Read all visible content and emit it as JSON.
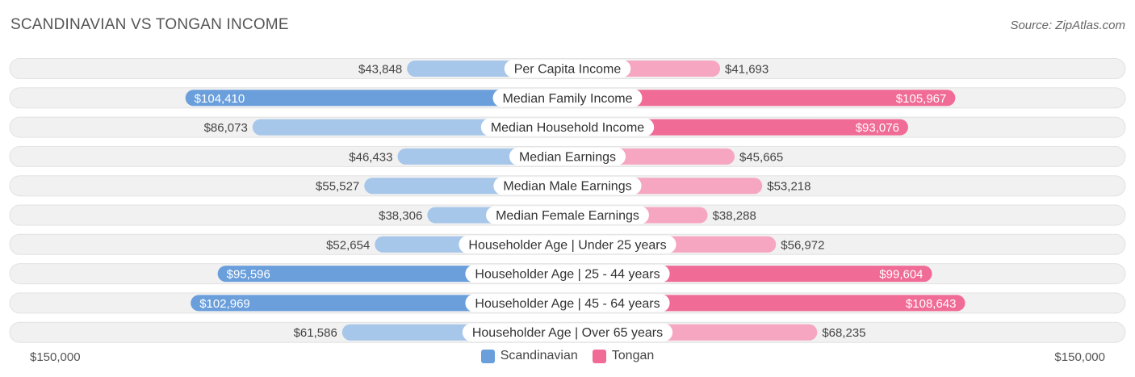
{
  "header": {
    "title": "SCANDINAVIAN VS TONGAN INCOME",
    "source": "Source: ZipAtlas.com"
  },
  "colors": {
    "left_dark": "#6a9fdc",
    "left_light": "#a6c6ea",
    "right_dark": "#f06b96",
    "right_light": "#f6a6c0",
    "row_bg": "#f1f1f1",
    "row_border": "#e2e2e2"
  },
  "chart_data": {
    "type": "bar",
    "orientation": "horizontal-diverging",
    "title": "SCANDINAVIAN VS TONGAN INCOME",
    "categories": [
      "Per Capita Income",
      "Median Family Income",
      "Median Household Income",
      "Median Earnings",
      "Median Male Earnings",
      "Median Female Earnings",
      "Householder Age | Under 25 years",
      "Householder Age | 25 - 44 years",
      "Householder Age | 45 - 64 years",
      "Householder Age | Over 65 years"
    ],
    "series": [
      {
        "name": "Scandinavian",
        "side": "left",
        "values": [
          43848,
          104410,
          86073,
          46433,
          55527,
          38306,
          52654,
          95596,
          102969,
          61586
        ],
        "labels": [
          "$43,848",
          "$104,410",
          "$86,073",
          "$46,433",
          "$55,527",
          "$38,306",
          "$52,654",
          "$95,596",
          "$102,969",
          "$61,586"
        ]
      },
      {
        "name": "Tongan",
        "side": "right",
        "values": [
          41693,
          105967,
          93076,
          45665,
          53218,
          38288,
          56972,
          99604,
          108643,
          68235
        ],
        "labels": [
          "$41,693",
          "$105,967",
          "$93,076",
          "$45,665",
          "$53,218",
          "$38,288",
          "$56,972",
          "$99,604",
          "$108,643",
          "$68,235"
        ]
      }
    ],
    "axis_max": 150000,
    "axis_labels": {
      "left": "$150,000",
      "right": "$150,000"
    },
    "highlight_threshold": 90000
  }
}
